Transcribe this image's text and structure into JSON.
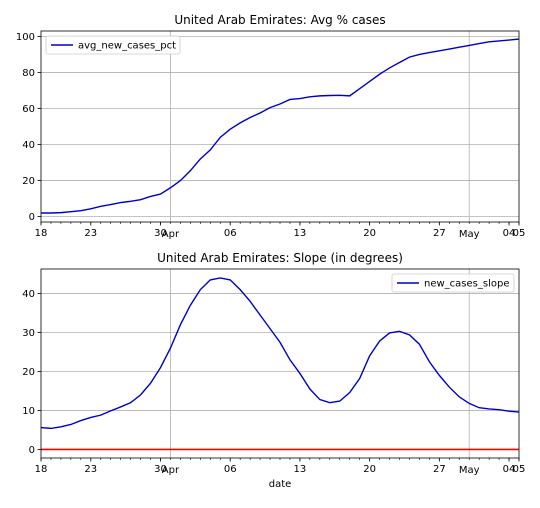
{
  "chart_data": [
    {
      "type": "line",
      "title": "United Arab Emirates: Avg % cases",
      "xlabel": "",
      "ylabel": "",
      "xlim": [
        0,
        48
      ],
      "ylim": [
        -3,
        103
      ],
      "yticks": [
        0,
        20,
        40,
        60,
        80,
        100
      ],
      "ytick_labels": [
        "0",
        "20",
        "40",
        "60",
        "80",
        "100"
      ],
      "xticks": [
        0,
        5,
        12,
        19,
        26,
        33,
        40,
        47,
        48
      ],
      "xtick_labels": [
        "18",
        "23",
        "30",
        "06",
        "13",
        "20",
        "27",
        "04",
        "05"
      ],
      "xtick_months": [
        {
          "x": 13,
          "label": "Apr"
        },
        {
          "x": 43,
          "label": "May"
        }
      ],
      "grid": true,
      "legend_position": "upper-left",
      "series": [
        {
          "name": "avg_new_cases_pct",
          "color": "#0000cc",
          "x": [
            0,
            1,
            2,
            3,
            4,
            5,
            6,
            7,
            8,
            9,
            10,
            11,
            12,
            13,
            14,
            15,
            16,
            17,
            18,
            19,
            20,
            21,
            22,
            23,
            24,
            25,
            26,
            27,
            28,
            29,
            30,
            31,
            32,
            33,
            34,
            35,
            36,
            37,
            38,
            39,
            40,
            41,
            42,
            43,
            44,
            45,
            46,
            47,
            48
          ],
          "values": [
            2.0,
            2.0,
            2.2,
            2.7,
            3.3,
            4.3,
            5.7,
            6.7,
            7.8,
            8.5,
            9.4,
            11.2,
            12.5,
            16,
            20,
            25.5,
            32,
            37,
            44,
            48.5,
            52,
            55,
            57.5,
            60.5,
            62.5,
            65,
            65.5,
            66.5,
            67,
            67.2,
            67.3,
            67,
            71,
            75,
            79,
            82.5,
            85.5,
            88.5,
            90,
            91,
            92,
            93,
            94,
            95,
            96,
            97,
            97.5,
            98,
            98.5
          ]
        }
      ]
    },
    {
      "type": "line",
      "title": "United Arab Emirates: Slope (in degrees)",
      "xlabel": "date",
      "ylabel": "",
      "xlim": [
        0,
        48
      ],
      "ylim": [
        -2.2,
        46.3
      ],
      "yticks": [
        0,
        10,
        20,
        30,
        40
      ],
      "ytick_labels": [
        "0",
        "10",
        "20",
        "30",
        "40"
      ],
      "xticks": [
        0,
        5,
        12,
        19,
        26,
        33,
        40,
        47,
        48
      ],
      "xtick_labels": [
        "18",
        "23",
        "30",
        "06",
        "13",
        "20",
        "27",
        "04",
        "05"
      ],
      "xtick_months": [
        {
          "x": 13,
          "label": "Apr"
        },
        {
          "x": 43,
          "label": "May"
        }
      ],
      "grid": true,
      "legend_position": "upper-right",
      "reference_line": {
        "y": 0,
        "color": "#ff0000"
      },
      "series": [
        {
          "name": "new_cases_slope",
          "color": "#0000cc",
          "x": [
            0,
            1,
            2,
            3,
            4,
            5,
            6,
            7,
            8,
            9,
            10,
            11,
            12,
            13,
            14,
            15,
            16,
            17,
            18,
            19,
            20,
            21,
            22,
            23,
            24,
            25,
            26,
            27,
            28,
            29,
            30,
            31,
            32,
            33,
            34,
            35,
            36,
            37,
            38,
            39,
            40,
            41,
            42,
            43,
            44,
            45,
            46,
            47,
            48
          ],
          "values": [
            5.6,
            5.4,
            5.8,
            6.4,
            7.4,
            8.2,
            8.8,
            9.9,
            10.9,
            12.0,
            14.0,
            17.0,
            21.0,
            26.0,
            32.0,
            37.0,
            41.0,
            43.5,
            44.0,
            43.5,
            41.0,
            38.0,
            34.5,
            31.0,
            27.5,
            23.0,
            19.5,
            15.5,
            12.8,
            12.0,
            12.4,
            14.6,
            18.2,
            24.0,
            27.8,
            29.9,
            30.3,
            29.4,
            27.0,
            22.5,
            19.0,
            16.0,
            13.5,
            11.8,
            10.7,
            10.4,
            10.2,
            9.8,
            9.6
          ]
        }
      ]
    }
  ]
}
